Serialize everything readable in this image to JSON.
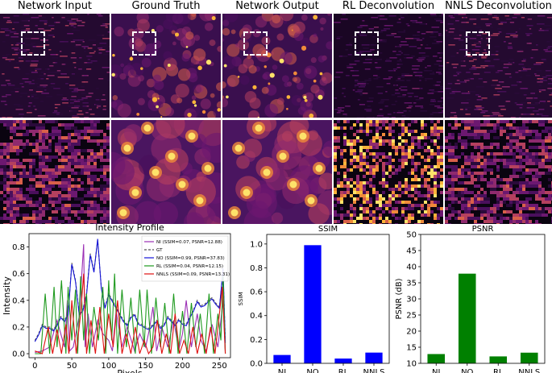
{
  "panels": {
    "titles": [
      "Network Input",
      "Ground Truth",
      "Network Output",
      "RL Deconvolution",
      "NNLS Deconvolution"
    ]
  },
  "chart_data": [
    {
      "type": "line",
      "title": "Intensity Profile",
      "xlabel": "Pixels",
      "ylabel": "Intensity",
      "xlim": [
        -8,
        265
      ],
      "ylim": [
        -0.03,
        0.9
      ],
      "xticks": [
        0,
        50,
        100,
        150,
        200,
        250
      ],
      "yticks": [
        0.0,
        0.2,
        0.4,
        0.6,
        0.8
      ],
      "legend_position": "top-right",
      "series": [
        {
          "name": "NI (SSIM=0.07, PSNR=12.88)",
          "color": "#9b2fb5",
          "dash": "solid",
          "x": [
            0,
            10,
            20,
            30,
            40,
            44,
            47,
            52,
            60,
            66,
            68,
            72,
            78,
            85,
            92,
            100,
            105,
            110,
            118,
            125,
            135,
            142,
            150,
            155,
            160,
            165,
            172,
            180,
            188,
            195,
            200,
            205,
            212,
            220,
            225,
            232,
            240,
            248,
            255,
            258
          ],
          "y": [
            0.01,
            0.02,
            0.05,
            0.25,
            0.05,
            0.4,
            0.02,
            0.05,
            0.28,
            0.82,
            0.05,
            0.3,
            0.05,
            0.25,
            0.15,
            0.1,
            0.02,
            0.32,
            0.05,
            0.2,
            0.02,
            0.15,
            0.05,
            0.18,
            0.35,
            0.02,
            0.2,
            0.05,
            0.25,
            0.03,
            0.15,
            0.4,
            0.05,
            0.3,
            0.1,
            0.02,
            0.22,
            0.05,
            0.4,
            0.02
          ]
        },
        {
          "name": "GT",
          "color": "#555555",
          "dash": "dashed",
          "x": [
            0,
            5,
            10,
            15,
            20,
            25,
            30,
            35,
            40,
            45,
            50,
            55,
            60,
            65,
            70,
            75,
            80,
            85,
            90,
            95,
            100,
            105,
            110,
            115,
            120,
            125,
            130,
            135,
            140,
            145,
            150,
            155,
            160,
            165,
            170,
            175,
            180,
            185,
            190,
            195,
            200,
            205,
            210,
            215,
            220,
            225,
            230,
            235,
            240,
            245,
            250,
            255,
            258
          ],
          "y": [
            0.1,
            0.15,
            0.22,
            0.2,
            0.2,
            0.18,
            0.22,
            0.28,
            0.25,
            0.3,
            0.68,
            0.55,
            0.3,
            0.33,
            0.45,
            0.75,
            0.62,
            0.85,
            0.5,
            0.35,
            0.45,
            0.4,
            0.35,
            0.3,
            0.25,
            0.22,
            0.28,
            0.3,
            0.23,
            0.22,
            0.2,
            0.19,
            0.22,
            0.25,
            0.2,
            0.22,
            0.28,
            0.25,
            0.22,
            0.26,
            0.23,
            0.22,
            0.28,
            0.33,
            0.4,
            0.36,
            0.37,
            0.4,
            0.42,
            0.38,
            0.35,
            0.61,
            0.1
          ]
        },
        {
          "name": "NO (SSIM=0.99, PSNR=37.83)",
          "color": "#1515d8",
          "dash": "solid",
          "x": [
            0,
            5,
            10,
            15,
            20,
            25,
            30,
            35,
            40,
            45,
            50,
            55,
            60,
            65,
            70,
            75,
            80,
            85,
            90,
            95,
            100,
            105,
            110,
            115,
            120,
            125,
            130,
            135,
            140,
            145,
            150,
            155,
            160,
            165,
            170,
            175,
            180,
            185,
            190,
            195,
            200,
            205,
            210,
            215,
            220,
            225,
            230,
            235,
            240,
            245,
            250,
            255,
            258
          ],
          "y": [
            0.09,
            0.14,
            0.21,
            0.19,
            0.19,
            0.17,
            0.21,
            0.27,
            0.24,
            0.29,
            0.67,
            0.54,
            0.29,
            0.32,
            0.44,
            0.74,
            0.61,
            0.86,
            0.49,
            0.34,
            0.44,
            0.39,
            0.34,
            0.29,
            0.24,
            0.21,
            0.27,
            0.29,
            0.22,
            0.21,
            0.19,
            0.18,
            0.21,
            0.24,
            0.19,
            0.21,
            0.27,
            0.24,
            0.21,
            0.25,
            0.22,
            0.21,
            0.27,
            0.32,
            0.39,
            0.35,
            0.36,
            0.39,
            0.41,
            0.37,
            0.34,
            0.64,
            0.08
          ]
        },
        {
          "name": "RL (SSIM=0.04, PSNR=12.15)",
          "color": "#1f9a1f",
          "dash": "solid",
          "x": [
            0,
            8,
            14,
            20,
            26,
            30,
            36,
            42,
            45,
            50,
            55,
            58,
            62,
            66,
            70,
            74,
            80,
            86,
            92,
            96,
            100,
            104,
            108,
            112,
            118,
            124,
            130,
            136,
            142,
            148,
            152,
            158,
            164,
            170,
            176,
            182,
            188,
            194,
            200,
            206,
            212,
            218,
            224,
            230,
            236,
            242,
            248,
            252,
            255,
            258
          ],
          "y": [
            0.0,
            0.0,
            0.45,
            0.0,
            0.5,
            0.05,
            0.55,
            0.0,
            0.5,
            0.1,
            0.48,
            0.0,
            0.58,
            0.1,
            0.45,
            0.0,
            0.35,
            0.1,
            0.5,
            0.0,
            0.55,
            0.1,
            0.6,
            0.0,
            0.48,
            0.05,
            0.42,
            0.0,
            0.48,
            0.05,
            0.48,
            0.0,
            0.42,
            0.05,
            0.38,
            0.0,
            0.45,
            0.0,
            0.32,
            0.0,
            0.38,
            0.05,
            0.3,
            0.0,
            0.45,
            0.0,
            0.3,
            0.1,
            0.58,
            0.0
          ]
        },
        {
          "name": "NNLS (SSIM=0.09, PSNR=13.31)",
          "color": "#e01010",
          "dash": "solid",
          "x": [
            0,
            10,
            18,
            24,
            30,
            36,
            42,
            46,
            50,
            56,
            62,
            66,
            70,
            76,
            82,
            88,
            94,
            100,
            106,
            112,
            118,
            124,
            130,
            136,
            142,
            148,
            154,
            160,
            166,
            172,
            178,
            184,
            190,
            196,
            202,
            208,
            214,
            220,
            226,
            232,
            238,
            244,
            250,
            254,
            258
          ],
          "y": [
            0.02,
            0.0,
            0.2,
            0.0,
            0.18,
            0.0,
            0.22,
            0.0,
            0.4,
            0.0,
            0.3,
            0.6,
            0.0,
            0.25,
            0.0,
            0.35,
            0.0,
            0.3,
            0.05,
            0.4,
            0.0,
            0.15,
            0.0,
            0.2,
            0.0,
            0.1,
            0.0,
            0.05,
            0.25,
            0.0,
            0.15,
            0.0,
            0.3,
            0.0,
            0.1,
            0.0,
            0.2,
            0.0,
            0.15,
            0.0,
            0.2,
            0.0,
            0.3,
            0.5,
            0.0
          ]
        }
      ]
    },
    {
      "type": "bar",
      "title": "SSIM",
      "xlabel": "",
      "ylabel": "SSIM",
      "categories": [
        "NI",
        "NO",
        "RL",
        "NNLS"
      ],
      "values": [
        0.07,
        0.99,
        0.04,
        0.09
      ],
      "ylim": [
        0.0,
        1.08
      ],
      "yticks": [
        0.0,
        0.2,
        0.4,
        0.6,
        0.8,
        1.0
      ],
      "color": "#0000ff"
    },
    {
      "type": "bar",
      "title": "PSNR",
      "xlabel": "",
      "ylabel": "PSNR (dB)",
      "categories": [
        "NI",
        "NO",
        "RL",
        "NNLS"
      ],
      "values": [
        12.88,
        37.83,
        12.15,
        13.31
      ],
      "ylim": [
        10,
        50
      ],
      "yticks": [
        10,
        15,
        20,
        25,
        30,
        35,
        40,
        45,
        50
      ],
      "color": "#008000"
    }
  ]
}
